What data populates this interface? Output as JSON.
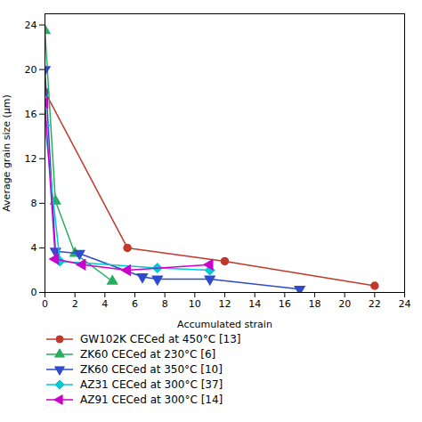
{
  "chart_data": {
    "type": "line",
    "xlabel": "Accumulated strain",
    "ylabel": "Average grain size (μm)",
    "xlim": [
      0,
      24
    ],
    "ylim": [
      0,
      25
    ],
    "xticks": [
      0,
      2,
      4,
      6,
      8,
      10,
      12,
      14,
      16,
      18,
      20,
      22,
      24
    ],
    "yticks": [
      0,
      4,
      8,
      12,
      16,
      20,
      24
    ],
    "grid": false,
    "legend": "bottom",
    "series": [
      {
        "name": "GW102K CECed at 450°C [13]",
        "color": "#c0392b",
        "marker": "circle",
        "line_style": "solid",
        "x": [
          0,
          5.5,
          12,
          22
        ],
        "values": [
          18,
          4,
          2.8,
          0.6
        ]
      },
      {
        "name": "ZK60 CECed at 230°C [6]",
        "color": "#27ae60",
        "marker": "triangle-up",
        "line_style": "solid",
        "x": [
          0,
          0.7,
          2,
          4.5
        ],
        "values": [
          23.5,
          8.2,
          3.5,
          1.0
        ]
      },
      {
        "name": "ZK60 CECed at 350°C [10]",
        "color": "#2e4bcc",
        "marker": "triangle-down",
        "line_style": "solid",
        "x": [
          0,
          0.7,
          2.3,
          6.5,
          7.5,
          11,
          17
        ],
        "values": [
          20,
          3.7,
          3.5,
          1.4,
          1.2,
          1.2,
          0.3
        ]
      },
      {
        "name": "AZ31 CECed at 300°C [37]",
        "color": "#00c8d4",
        "marker": "diamond",
        "line_style": "solid",
        "x": [
          0,
          1.0,
          7.5,
          11
        ],
        "values": [
          15,
          2.8,
          2.2,
          2.0
        ]
      },
      {
        "name": "AZ91 CECed at 300°C [14]",
        "color": "#cc00cc",
        "marker": "triangle-left",
        "line_style": "solid",
        "x": [
          0,
          0.7,
          2.5,
          5.5,
          11
        ],
        "values": [
          17,
          3.0,
          2.5,
          2.0,
          2.5
        ]
      }
    ]
  }
}
